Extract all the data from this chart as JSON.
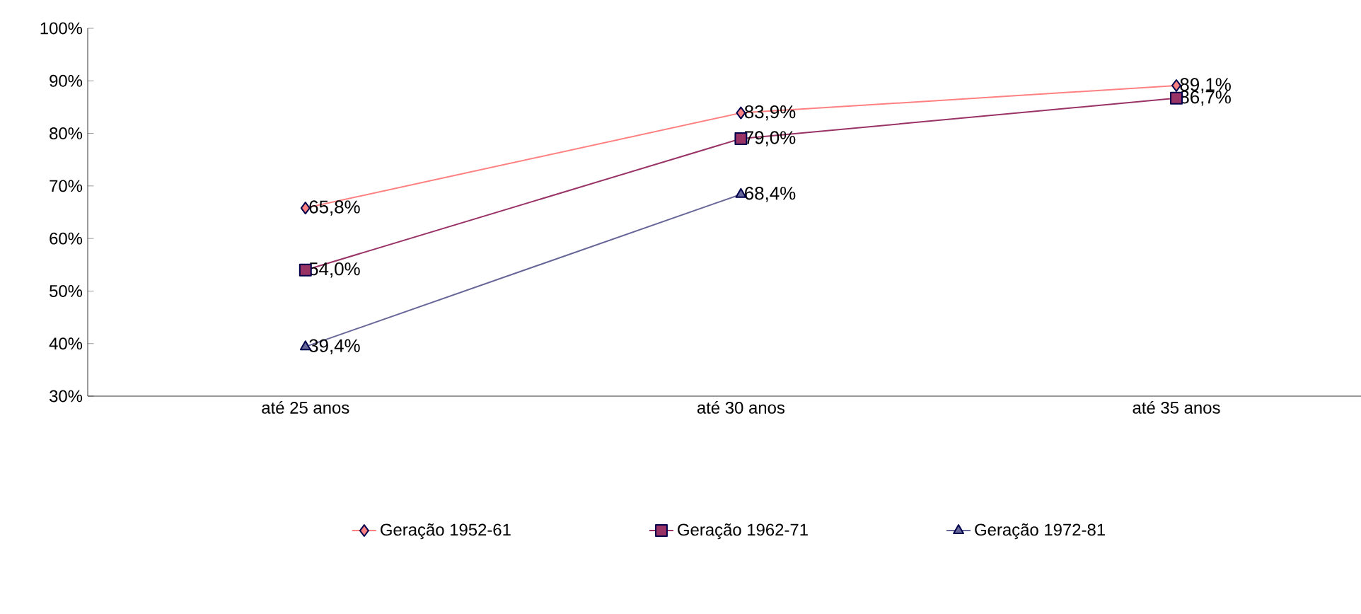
{
  "chart_data": {
    "type": "line",
    "categories": [
      "até 25 anos",
      "até 30 anos",
      "até 35 anos"
    ],
    "series": [
      {
        "name": "Geração 1952-61",
        "color": "#ff8080",
        "marker": "diamond",
        "values": [
          65.8,
          83.9,
          89.1
        ],
        "value_labels": [
          "65,8%",
          "83,9%",
          "89,1%"
        ]
      },
      {
        "name": "Geração 1962-71",
        "color": "#993366",
        "marker": "square",
        "values": [
          54.0,
          79.0,
          86.7
        ],
        "value_labels": [
          "54,0%",
          "79,0%",
          "86,7%"
        ]
      },
      {
        "name": "Geração 1972-81",
        "color": "#666699",
        "marker": "triangle",
        "values": [
          39.4,
          68.4,
          null
        ],
        "value_labels": [
          "39,4%",
          "68,4%",
          null
        ]
      }
    ],
    "ylim": [
      30,
      100
    ],
    "yticks": [
      {
        "value": 30,
        "label": "30%"
      },
      {
        "value": 40,
        "label": "40%"
      },
      {
        "value": 50,
        "label": "50%"
      },
      {
        "value": 60,
        "label": "60%"
      },
      {
        "value": 70,
        "label": "70%"
      },
      {
        "value": 80,
        "label": "80%"
      },
      {
        "value": 90,
        "label": "90%"
      },
      {
        "value": 100,
        "label": "100%"
      }
    ],
    "grid": false,
    "legend": "bottom",
    "line_style": "solid"
  }
}
